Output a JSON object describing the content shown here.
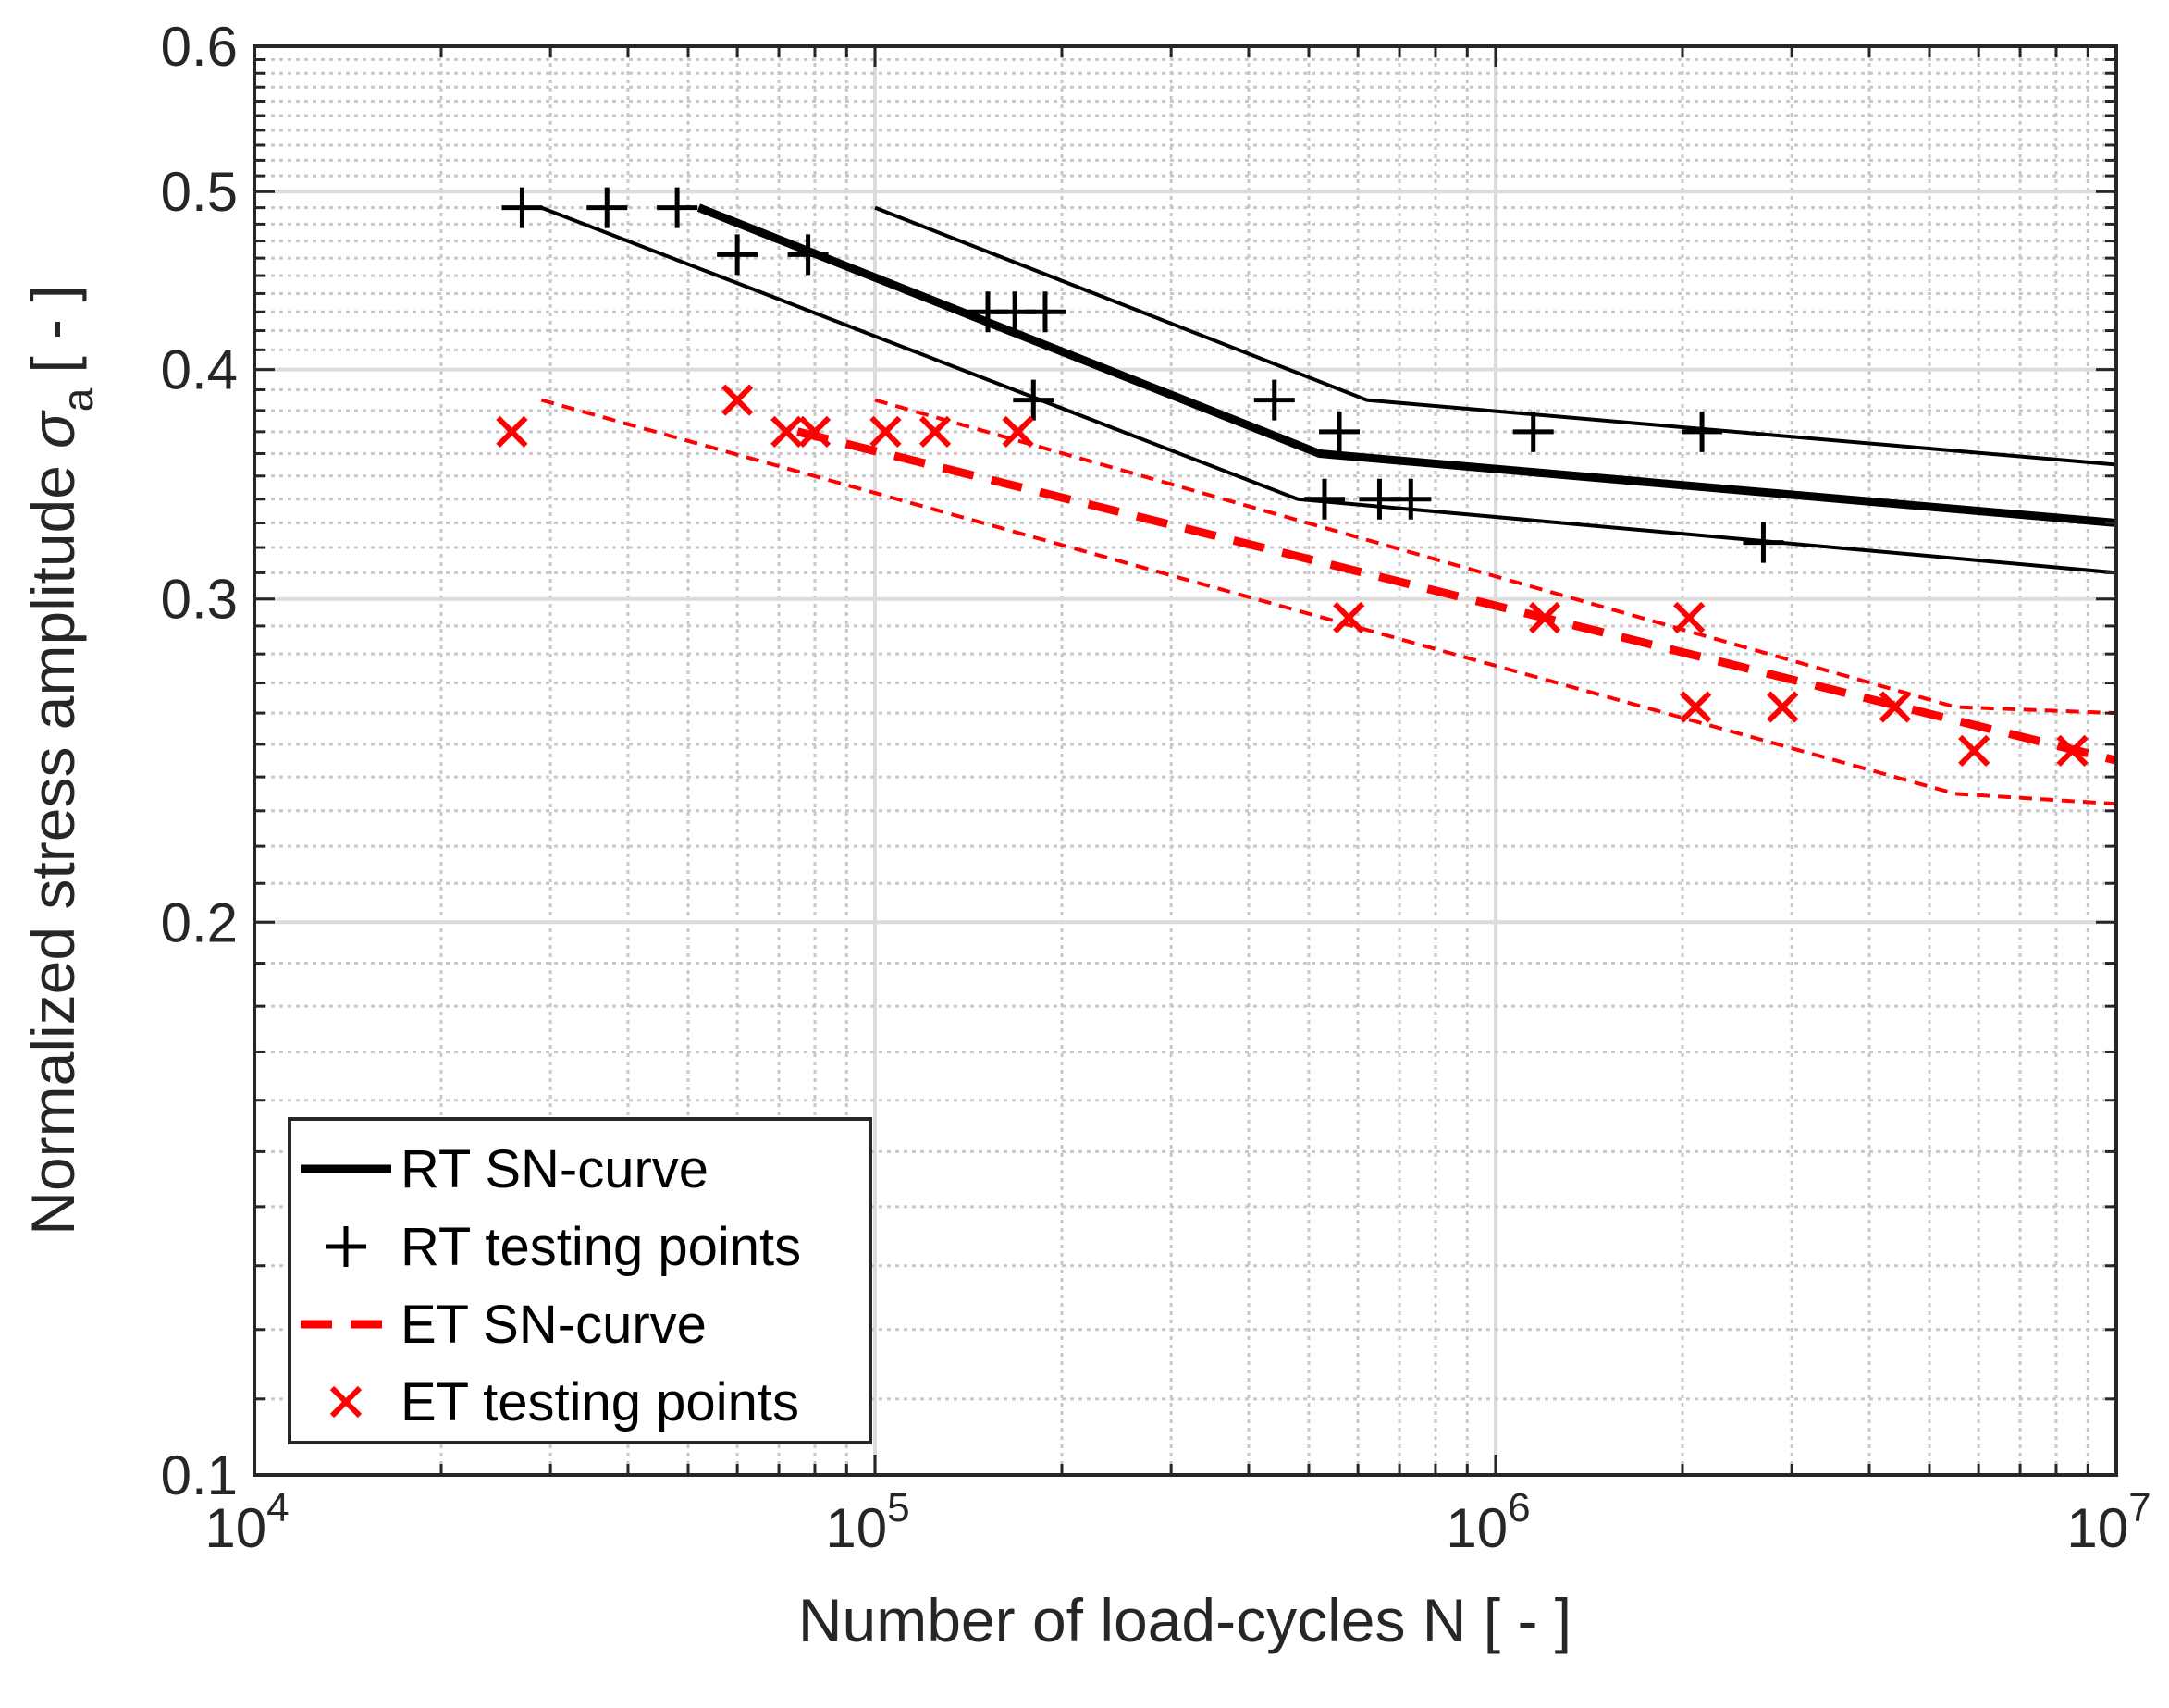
{
  "chart_data": {
    "type": "line",
    "title": "",
    "xlabel": "Number of load-cycles N [ - ]",
    "ylabel": "Normalized stress amplitude",
    "ylabel_symbol": "σ",
    "ylabel_subscript": "a",
    "ylabel_unit": "[ - ]",
    "xscale": "log",
    "yscale": "log",
    "xlim": [
      10000,
      10000000
    ],
    "ylim": [
      0.1,
      0.6
    ],
    "grid": "major and minor",
    "legend_position": "bottom-left",
    "x_ticks": [
      {
        "value": 10000,
        "base": "10",
        "exp": "4"
      },
      {
        "value": 100000,
        "base": "10",
        "exp": "5"
      },
      {
        "value": 1000000,
        "base": "10",
        "exp": "6"
      },
      {
        "value": 10000000,
        "base": "10",
        "exp": "7"
      }
    ],
    "y_ticks": [
      {
        "value": 0.1,
        "label": "0.1"
      },
      {
        "value": 0.2,
        "label": "0.2"
      },
      {
        "value": 0.3,
        "label": "0.3"
      },
      {
        "value": 0.4,
        "label": "0.4"
      },
      {
        "value": 0.5,
        "label": "0.5"
      },
      {
        "value": 0.6,
        "label": "0.6"
      }
    ],
    "series": [
      {
        "name": "RT SN-curve",
        "kind": "line",
        "color": "#000000",
        "style": "solid",
        "weight": "thick",
        "points": [
          [
            52000,
            0.49
          ],
          [
            520000,
            0.36
          ],
          [
            10000000,
            0.33
          ]
        ]
      },
      {
        "name": "RT lower bound",
        "kind": "line",
        "color": "#000000",
        "style": "solid",
        "weight": "thin",
        "points": [
          [
            29000,
            0.49
          ],
          [
            480000,
            0.34
          ],
          [
            10000000,
            0.31
          ]
        ]
      },
      {
        "name": "RT upper bound",
        "kind": "line",
        "color": "#000000",
        "style": "solid",
        "weight": "thin",
        "points": [
          [
            100000,
            0.49
          ],
          [
            620000,
            0.385
          ],
          [
            10000000,
            0.355
          ]
        ]
      },
      {
        "name": "RT testing points",
        "kind": "marker",
        "marker": "plus",
        "color": "#000000",
        "points": [
          [
            27000,
            0.49
          ],
          [
            37000,
            0.49
          ],
          [
            48000,
            0.49
          ],
          [
            60000,
            0.462
          ],
          [
            78000,
            0.462
          ],
          [
            152000,
            0.43
          ],
          [
            168000,
            0.43
          ],
          [
            188000,
            0.43
          ],
          [
            180000,
            0.385
          ],
          [
            440000,
            0.385
          ],
          [
            560000,
            0.37
          ],
          [
            530000,
            0.34
          ],
          [
            650000,
            0.34
          ],
          [
            730000,
            0.34
          ],
          [
            1150000,
            0.37
          ],
          [
            2150000,
            0.37
          ],
          [
            2700000,
            0.322
          ]
        ]
      },
      {
        "name": "ET SN-curve",
        "kind": "line",
        "color": "#ff0000",
        "style": "dashed",
        "weight": "thick",
        "points": [
          [
            75000,
            0.37
          ],
          [
            10000000,
            0.245
          ]
        ]
      },
      {
        "name": "ET lower bound",
        "kind": "line",
        "color": "#ff0000",
        "style": "dashed",
        "weight": "thin",
        "points": [
          [
            29000,
            0.385
          ],
          [
            5500000,
            0.235
          ],
          [
            10000000,
            0.232
          ]
        ]
      },
      {
        "name": "ET upper bound",
        "kind": "line",
        "color": "#ff0000",
        "style": "dashed",
        "weight": "thin",
        "points": [
          [
            100000,
            0.385
          ],
          [
            5500000,
            0.262
          ],
          [
            10000000,
            0.26
          ]
        ]
      },
      {
        "name": "ET testing points",
        "kind": "marker",
        "marker": "cross",
        "color": "#ff0000",
        "points": [
          [
            26000,
            0.37
          ],
          [
            60000,
            0.385
          ],
          [
            72000,
            0.37
          ],
          [
            80000,
            0.37
          ],
          [
            104000,
            0.37
          ],
          [
            125000,
            0.37
          ],
          [
            170000,
            0.37
          ],
          [
            580000,
            0.293
          ],
          [
            1200000,
            0.293
          ],
          [
            2050000,
            0.293
          ],
          [
            2100000,
            0.262
          ],
          [
            2900000,
            0.262
          ],
          [
            4400000,
            0.262
          ],
          [
            5900000,
            0.248
          ],
          [
            8500000,
            0.248
          ]
        ]
      }
    ],
    "legend": [
      {
        "label": "RT SN-curve",
        "kind": "line",
        "color": "#000000",
        "style": "solid"
      },
      {
        "label": "RT testing points",
        "kind": "marker",
        "marker": "plus",
        "color": "#000000"
      },
      {
        "label": "ET SN-curve",
        "kind": "line",
        "color": "#ff0000",
        "style": "dashed"
      },
      {
        "label": "ET testing points",
        "kind": "marker",
        "marker": "cross",
        "color": "#ff0000"
      }
    ]
  }
}
